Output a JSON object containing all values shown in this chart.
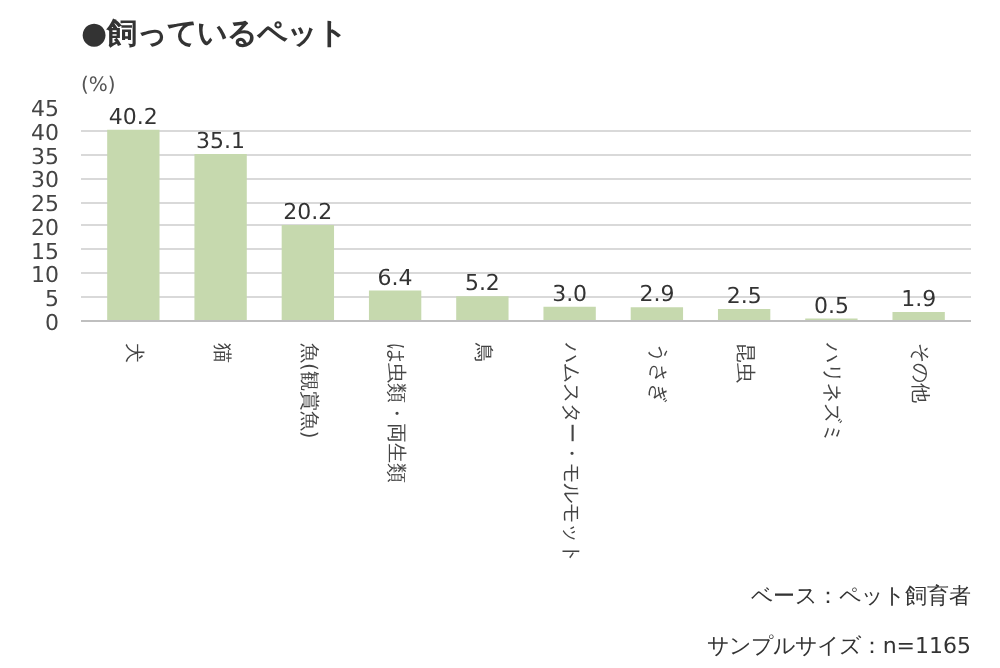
{
  "chart_data": {
    "type": "bar",
    "title": "●飼っているペット",
    "ylabel": "(%)",
    "categories": [
      "犬",
      "猫",
      "魚(観賞魚)",
      "は虫類・両生類",
      "鳥",
      "ハムスター・モルモット",
      "うさぎ",
      "昆虫",
      "ハリネズミ",
      "その他"
    ],
    "values": [
      40.2,
      35.1,
      20.2,
      6.4,
      5.2,
      3.0,
      2.9,
      2.5,
      0.5,
      1.9
    ],
    "value_labels": [
      "40.2",
      "35.1",
      "20.2",
      "6.4",
      "5.2",
      "3.0",
      "2.9",
      "2.5",
      "0.5",
      "1.9"
    ],
    "color": "#c6d9ae",
    "ylim": [
      0,
      45
    ],
    "yticks": [
      0,
      5,
      10,
      15,
      20,
      25,
      30,
      35,
      40,
      45
    ],
    "grid": "y",
    "annotations": [
      "ベース：ペット飼育者",
      "サンプルサイズ：n=1165"
    ]
  }
}
